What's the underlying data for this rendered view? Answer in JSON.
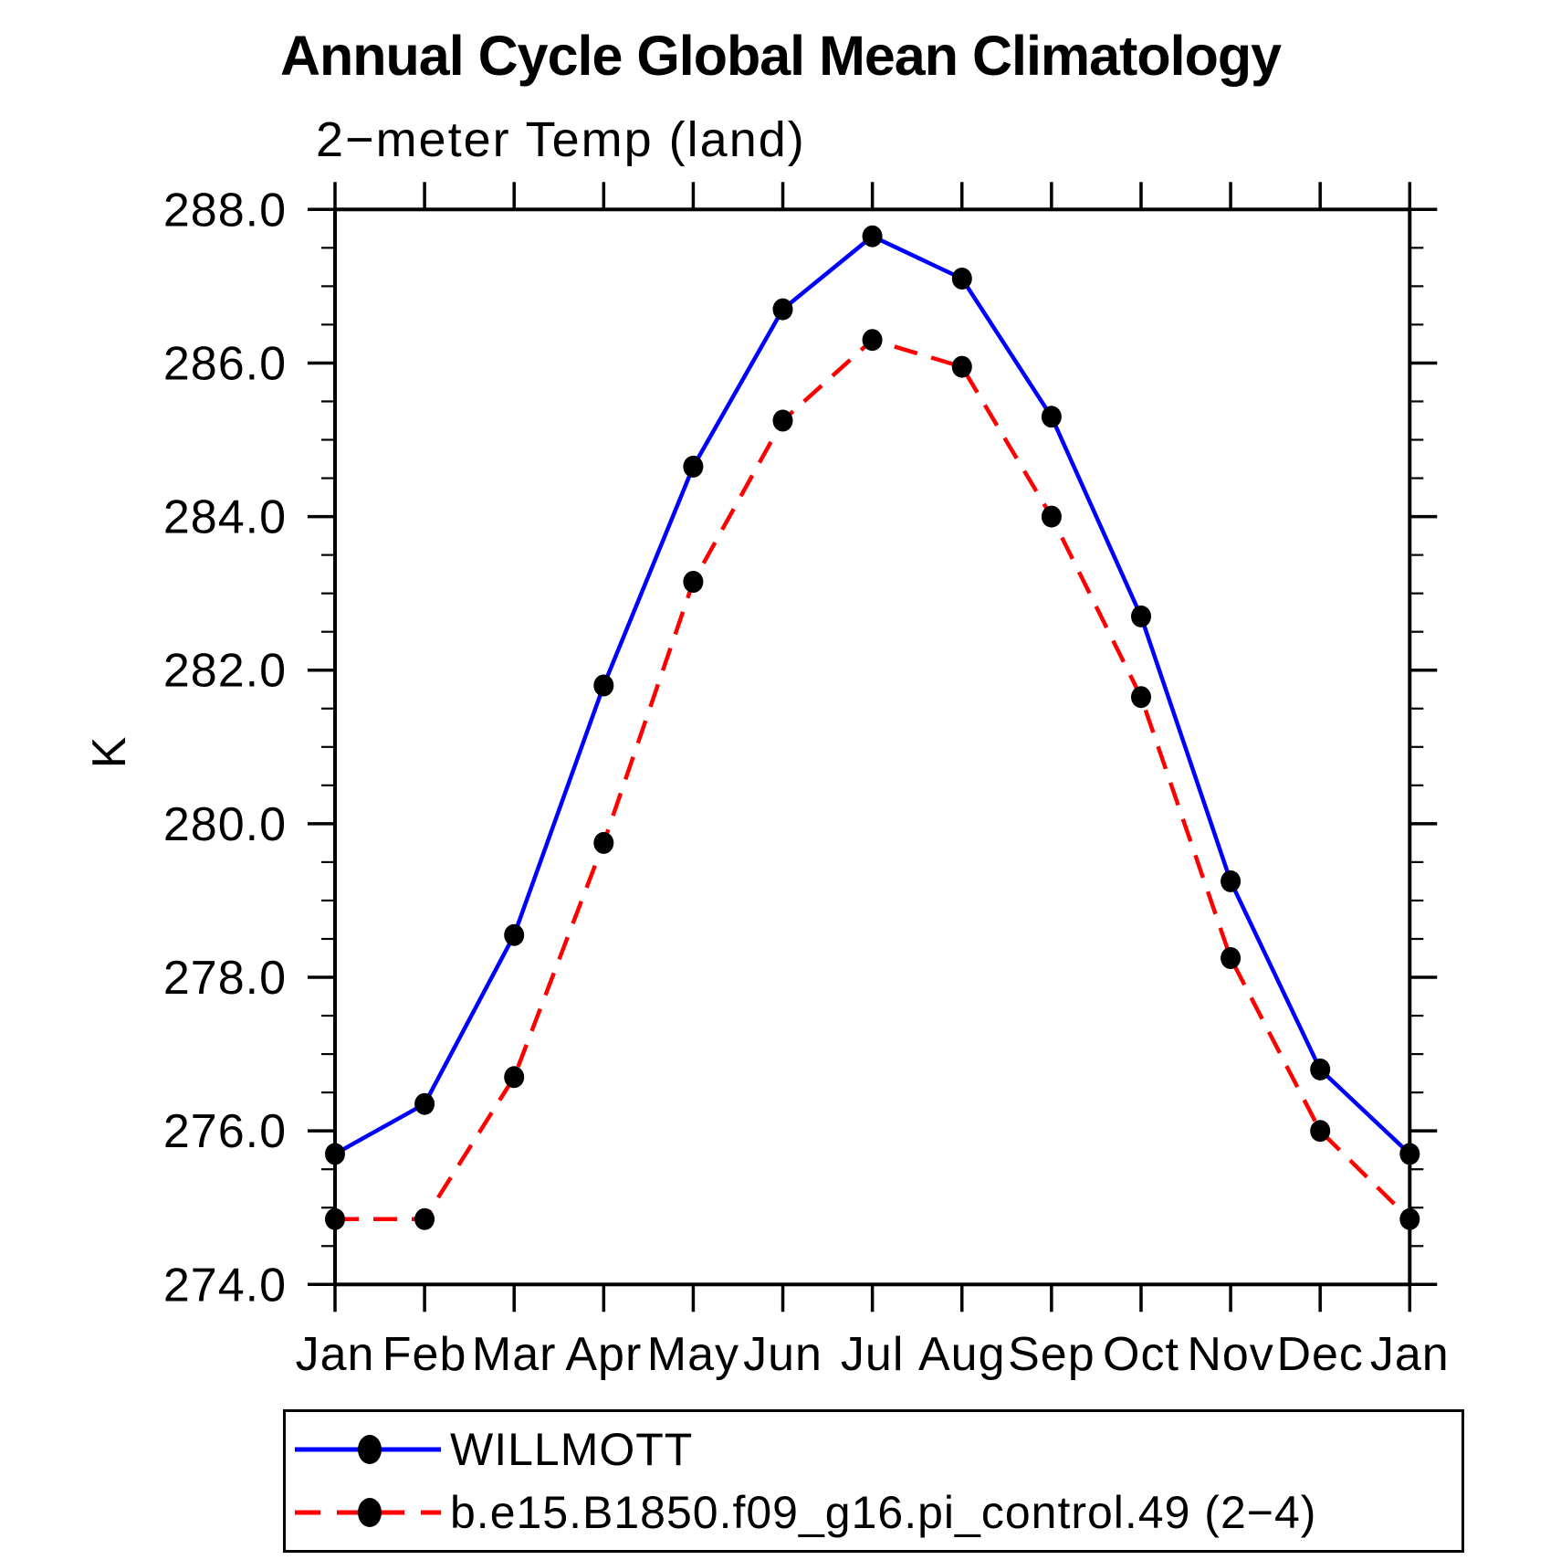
{
  "title": "Annual Cycle Global Mean Climatology",
  "subtitle": "2−meter Temp (land)",
  "y_axis_unit": "K",
  "chart_data": {
    "type": "line",
    "title": "Annual Cycle Global Mean Climatology",
    "subtitle": "2−meter Temp (land)",
    "xlabel": "",
    "ylabel": "K",
    "x_categories": [
      "Jan",
      "Feb",
      "Mar",
      "Apr",
      "May",
      "Jun",
      "Jul",
      "Aug",
      "Sep",
      "Oct",
      "Nov",
      "Dec",
      "Jan"
    ],
    "ylim": [
      274.0,
      288.0
    ],
    "ytick_major_interval": 2.0,
    "ytick_minor_interval": 0.5,
    "grid": false,
    "legend_position": "bottom",
    "yticks": [
      {
        "label": "288.0",
        "value": 288.0
      },
      {
        "label": "286.0",
        "value": 286.0
      },
      {
        "label": "284.0",
        "value": 284.0
      },
      {
        "label": "282.0",
        "value": 282.0
      },
      {
        "label": "280.0",
        "value": 280.0
      },
      {
        "label": "278.0",
        "value": 278.0
      },
      {
        "label": "276.0",
        "value": 276.0
      },
      {
        "label": "274.0",
        "value": 274.0
      }
    ],
    "series": [
      {
        "name": "WILLMOTT",
        "line_color": "#0000ff",
        "line_style": "solid",
        "marker": "filled-circle",
        "marker_color": "#000000",
        "values": [
          275.7,
          276.35,
          278.55,
          281.8,
          284.65,
          286.7,
          287.65,
          287.1,
          285.3,
          282.7,
          279.25,
          276.8,
          275.7
        ]
      },
      {
        "name": "b.e15.B1850.f09_g16.pi_control.49 (2−4)",
        "line_color": "#ff0000",
        "line_style": "dashed",
        "marker": "filled-circle",
        "marker_color": "#000000",
        "values": [
          274.85,
          274.85,
          276.7,
          279.75,
          283.15,
          285.25,
          286.3,
          285.95,
          284.0,
          281.65,
          278.25,
          276.0,
          274.85
        ]
      }
    ]
  }
}
